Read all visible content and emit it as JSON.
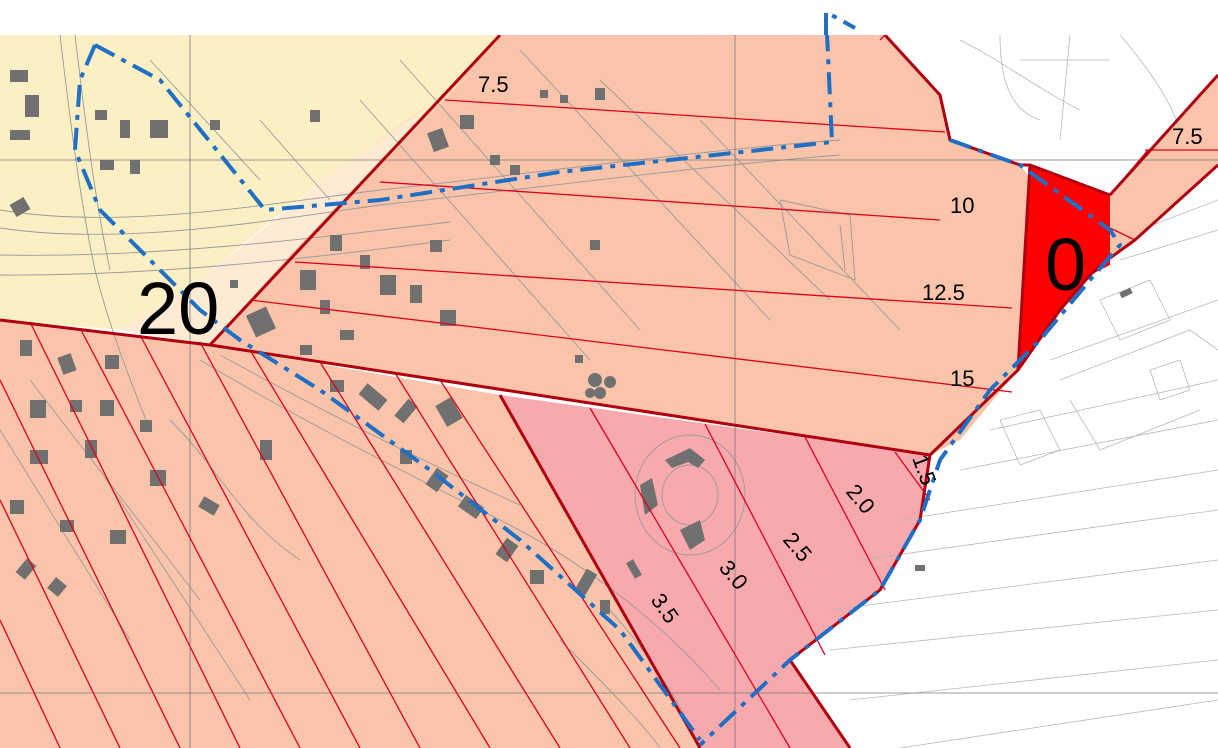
{
  "map": {
    "contour_labels": [
      {
        "key": "c75a",
        "text": "7.5"
      },
      {
        "key": "c75b",
        "text": "7.5"
      },
      {
        "key": "c10",
        "text": "10"
      },
      {
        "key": "c125",
        "text": "12.5"
      },
      {
        "key": "c15",
        "text": "15"
      },
      {
        "key": "c15b",
        "text": "1.5"
      },
      {
        "key": "c20",
        "text": "2.0"
      },
      {
        "key": "c25",
        "text": "2.5"
      },
      {
        "key": "c30",
        "text": "3.0"
      },
      {
        "key": "c35",
        "text": "3.5"
      }
    ],
    "zone_labels": [
      {
        "key": "z20",
        "text": "20"
      },
      {
        "key": "z0",
        "text": "0"
      }
    ],
    "colors": {
      "zone_salmon": "#f9c4aa",
      "zone_yellow": "#fbefc4",
      "zone_pink": "#f7a9ad",
      "zone_red": "#ff0000",
      "contour_line": "#e0001b",
      "boundary": "#1f6fc4",
      "building": "#707070"
    }
  }
}
